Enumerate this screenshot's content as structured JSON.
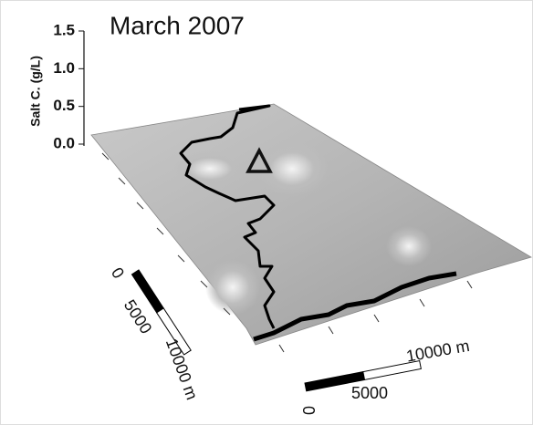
{
  "chart_data": {
    "type": "surface",
    "title": "March 2007",
    "zlabel": "Salt C. (g/L)",
    "zlim": [
      0,
      1.5
    ],
    "zticks": [
      {
        "value": 0,
        "label": "0.0"
      },
      {
        "value": 0.5,
        "label": "0.5"
      },
      {
        "value": 1.0,
        "label": "1.0"
      },
      {
        "value": 1.5,
        "label": "1.5"
      }
    ],
    "scale_bars": [
      {
        "labels": [
          "0",
          "5000",
          "10000 m"
        ]
      },
      {
        "labels": [
          "0",
          "5000",
          "10000 m"
        ]
      }
    ]
  }
}
